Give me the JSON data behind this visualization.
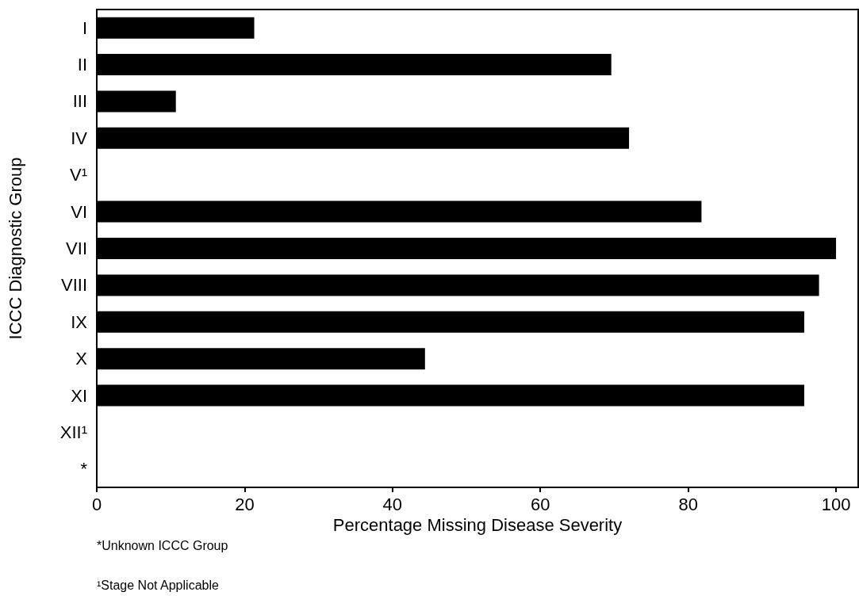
{
  "chart_data": {
    "type": "bar",
    "orientation": "horizontal",
    "xlabel": "Percentage Missing Disease Severity",
    "ylabel": "ICCC Diagnostic Group",
    "categories": [
      "I",
      "II",
      "III",
      "IV",
      "V¹",
      "VI",
      "VII",
      "VIII",
      "IX",
      "X",
      "XI",
      "XII¹",
      "*"
    ],
    "values": [
      21.3,
      69.6,
      10.7,
      72.0,
      null,
      81.8,
      100,
      97.7,
      95.7,
      44.4,
      95.7,
      null,
      null
    ],
    "color": "#000000",
    "xlim": [
      0,
      103
    ],
    "xticks": [
      0,
      20,
      40,
      60,
      80,
      100
    ],
    "grid": false,
    "annotations": [
      "*Unknown ICCC Group",
      "¹Stage Not Applicable"
    ]
  }
}
